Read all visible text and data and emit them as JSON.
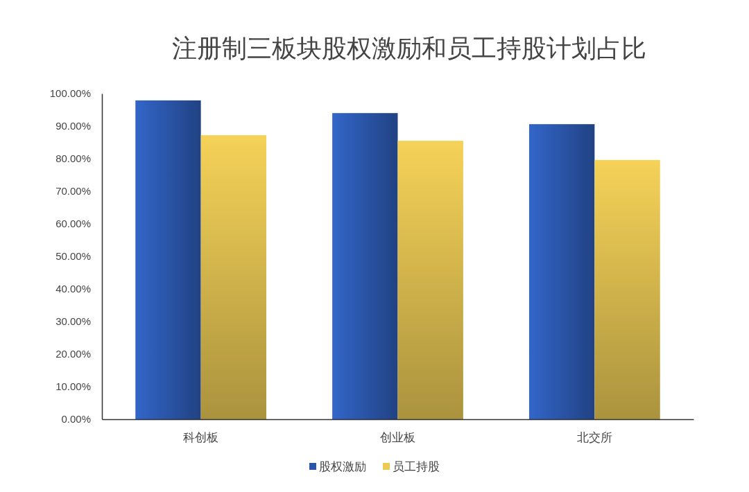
{
  "chart_data": {
    "type": "bar",
    "title": "注册制三板块股权激励和员工持股计划占比",
    "categories": [
      "科创板",
      "创业板",
      "北交所"
    ],
    "series": [
      {
        "name": "股权激励",
        "color": "#2a55a8",
        "values": [
          97.9,
          94.0,
          90.6
        ]
      },
      {
        "name": "员工持股",
        "color": "#eccb55",
        "values": [
          87.2,
          85.5,
          79.6
        ]
      }
    ],
    "ylim": [
      0,
      100
    ],
    "yticks": [
      {
        "value": 0,
        "label": "0.00%"
      },
      {
        "value": 10,
        "label": "10.00%"
      },
      {
        "value": 20,
        "label": "20.00%"
      },
      {
        "value": 30,
        "label": "30.00%"
      },
      {
        "value": 40,
        "label": "40.00%"
      },
      {
        "value": 50,
        "label": "50.00%"
      },
      {
        "value": 60,
        "label": "60.00%"
      },
      {
        "value": 70,
        "label": "70.00%"
      },
      {
        "value": 80,
        "label": "80.00%"
      },
      {
        "value": 90,
        "label": "90.00%"
      },
      {
        "value": 100,
        "label": "100.00%"
      }
    ],
    "grid": false,
    "legend": "bottom"
  }
}
